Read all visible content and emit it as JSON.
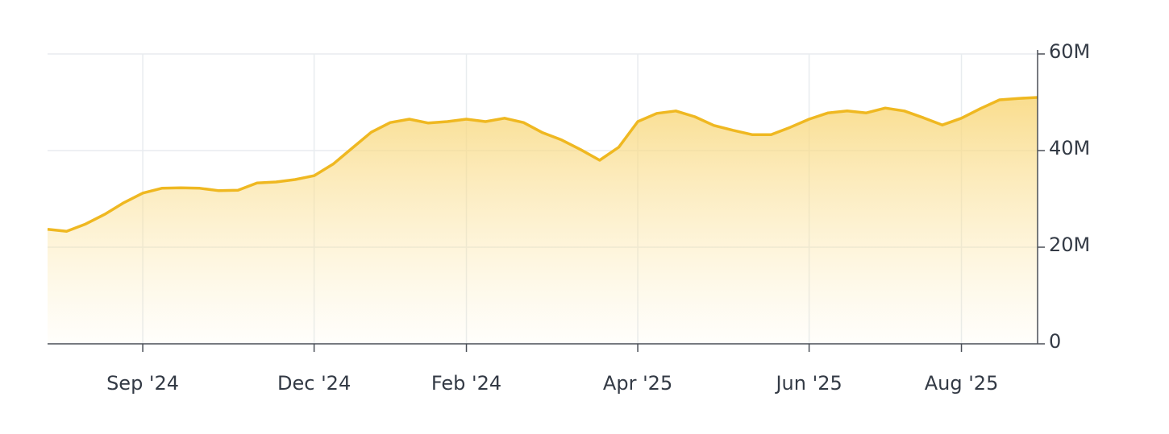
{
  "chart_data": {
    "type": "area",
    "categories": [
      null,
      null,
      null,
      null,
      null,
      "Sep '24",
      null,
      null,
      null,
      null,
      null,
      null,
      null,
      null,
      "Dec '24",
      null,
      null,
      null,
      null,
      null,
      null,
      null,
      "Feb '24",
      null,
      null,
      null,
      null,
      null,
      null,
      null,
      null,
      "Apr '25",
      null,
      null,
      null,
      null,
      null,
      null,
      null,
      null,
      "Jun '25",
      null,
      null,
      null,
      null,
      null,
      null,
      null,
      "Aug '25",
      null,
      null,
      null,
      null
    ],
    "series": [
      {
        "color": "#efb821",
        "values": [
          23700000,
          23300000,
          24800000,
          26800000,
          29200000,
          31200000,
          32200000,
          32300000,
          32200000,
          31700000,
          31800000,
          33300000,
          33500000,
          34000000,
          34800000,
          37200000,
          40500000,
          43800000,
          45800000,
          46500000,
          45700000,
          46000000,
          46500000,
          46000000,
          46700000,
          45800000,
          43700000,
          42200000,
          40200000,
          38000000,
          40700000,
          46000000,
          47700000,
          48200000,
          47000000,
          45200000,
          44200000,
          43300000,
          43300000,
          44800000,
          46500000,
          47800000,
          48200000,
          47800000,
          48800000,
          48200000,
          46800000,
          45300000,
          46700000,
          48700000,
          50500000,
          50800000,
          51000000
        ]
      }
    ],
    "ylim": [
      0,
      60000000
    ],
    "yticks": [
      {
        "value": 0,
        "label": "0"
      },
      {
        "value": 20000000,
        "label": "20M"
      },
      {
        "value": 40000000,
        "label": "40M"
      },
      {
        "value": 60000000,
        "label": "60M"
      }
    ],
    "grid": true
  }
}
